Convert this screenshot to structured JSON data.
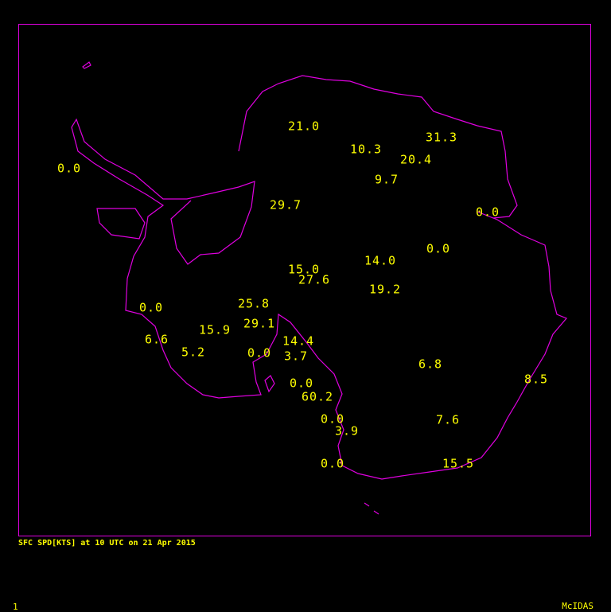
{
  "caption": "SFC SPD[KTS] at 10 UTC on 21 Apr 2015",
  "frame_number": "1",
  "software": "McIDAS",
  "colors": {
    "coastline": "#e000e0",
    "text": "#ffff00",
    "background": "#000000"
  },
  "stations": [
    "21.0",
    "31.3",
    "10.3",
    "20.4",
    "0.0",
    "9.7",
    "29.7",
    "0.0",
    "0.0",
    "14.0",
    "15.0",
    "27.6",
    "19.2",
    "25.8",
    "0.0",
    "29.1",
    "15.9",
    "14.4",
    "6.6",
    "5.2",
    "0.0",
    "3.7",
    "6.8",
    "8.5",
    "0.0",
    "60.2",
    "0.0",
    "7.6",
    "3.9",
    "0.0",
    "15.5"
  ]
}
